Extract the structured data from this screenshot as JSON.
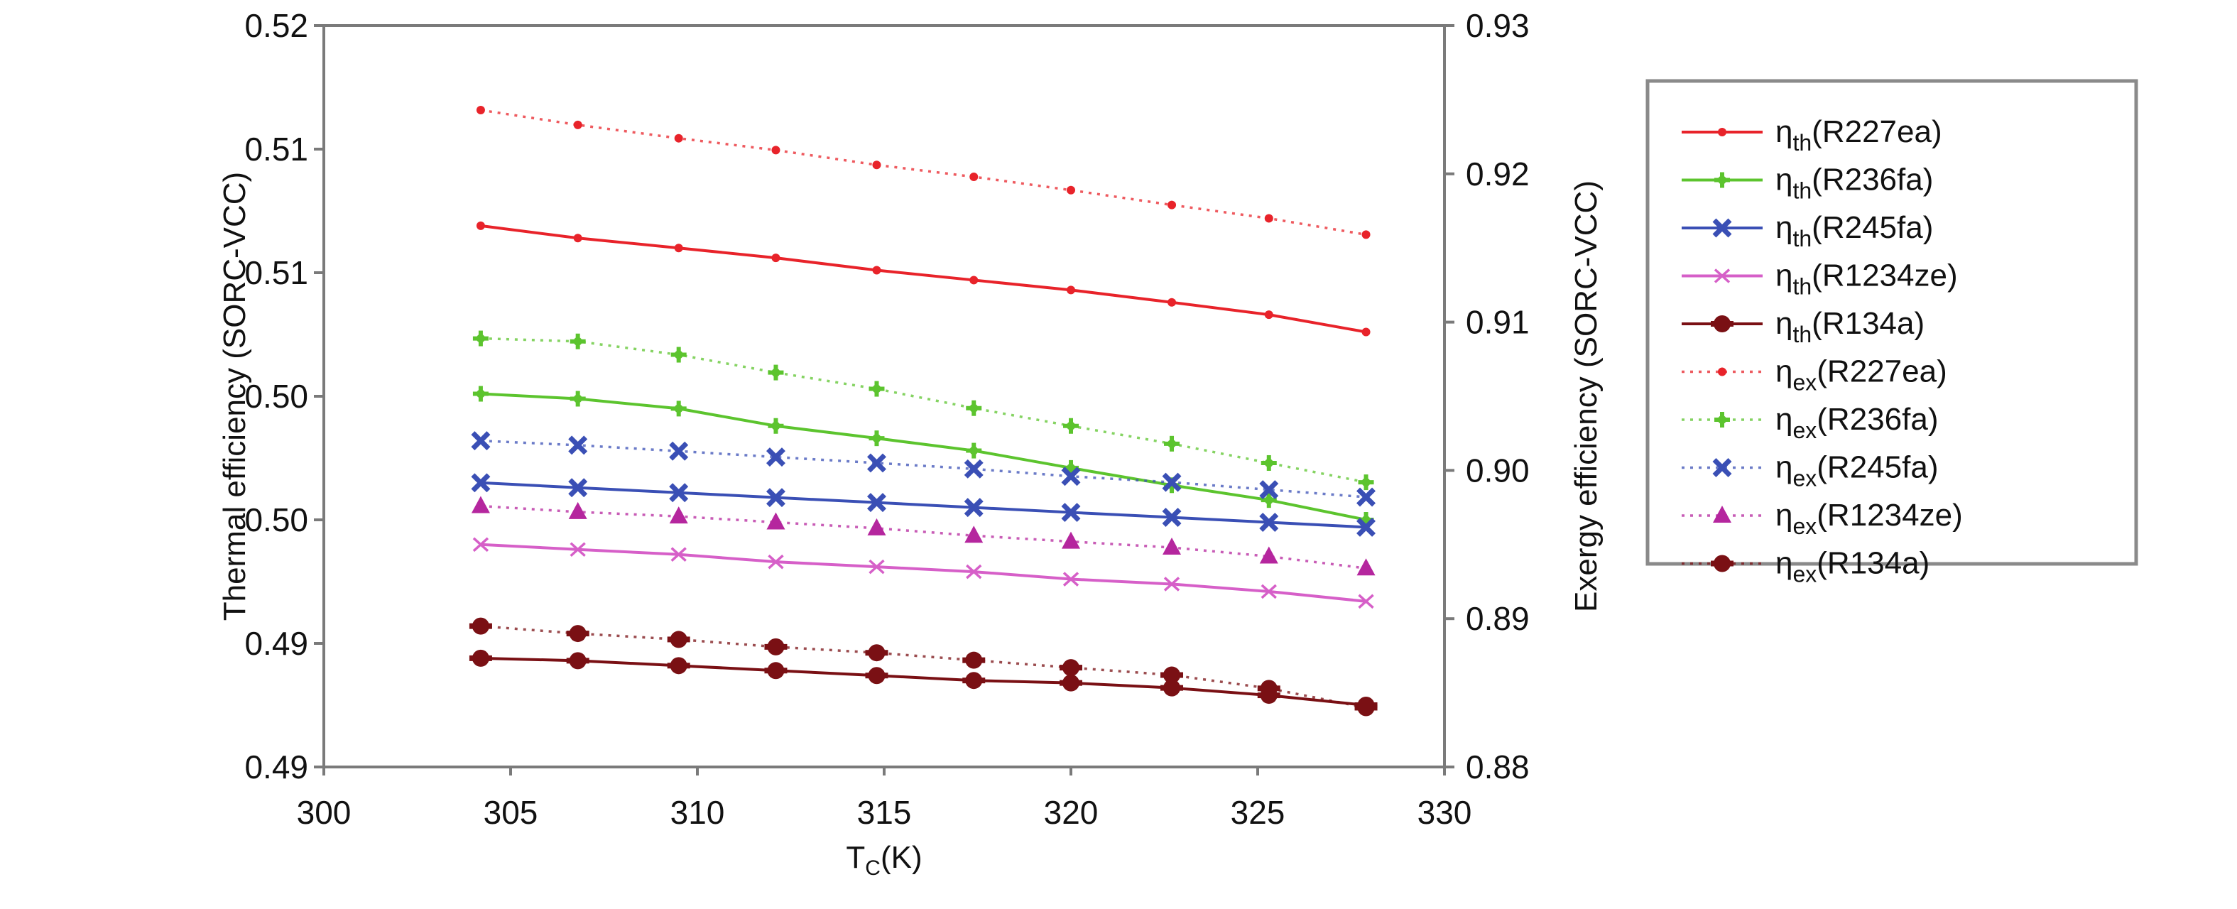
{
  "chart_data": {
    "type": "line",
    "title": "",
    "xlabel": "T",
    "xlabel_sub": "C",
    "xlabel_unit": "(K)",
    "ylabel_left": "Thermal efficiency (SORC-VCC)",
    "ylabel_right": "Exergy efficiency (SORC-VCC)",
    "xlim": [
      300,
      330
    ],
    "ylim_left": [
      0.49,
      0.52
    ],
    "ylim_right": [
      0.88,
      0.93
    ],
    "x_ticks": [
      "300",
      "305",
      "310",
      "315",
      "320",
      "325",
      "330"
    ],
    "y_left_ticks": [
      "0.49",
      "0.49",
      "0.50",
      "0.50",
      "0.51",
      "0.51",
      "0.52"
    ],
    "y_right_ticks": [
      "0.88",
      "0.89",
      "0.90",
      "0.91",
      "0.92",
      "0.93"
    ],
    "grid": false,
    "legend_placement": "right-outside",
    "x": [
      304.2,
      306.8,
      309.5,
      312.1,
      314.8,
      317.4,
      320.0,
      322.7,
      325.3,
      327.9
    ],
    "series": [
      {
        "name": "ηth(R227ea)",
        "symbol": "η",
        "sub": "th",
        "ref": "(R227ea)",
        "axis": "left",
        "style": "solid",
        "marker": "dot",
        "color": "#e8232a",
        "values": [
          0.5119,
          0.5114,
          0.511,
          0.5106,
          0.5101,
          0.5097,
          0.5093,
          0.5088,
          0.5083,
          0.5076
        ]
      },
      {
        "name": "ηth(R236fa)",
        "symbol": "η",
        "sub": "th",
        "ref": "(R236fa)",
        "axis": "left",
        "style": "solid",
        "marker": "plus",
        "color": "#5cc42e",
        "values": [
          0.5051,
          0.5049,
          0.5045,
          0.5038,
          0.5033,
          0.5028,
          0.5021,
          0.5014,
          0.5008,
          0.5
        ]
      },
      {
        "name": "ηth(R245fa)",
        "symbol": "η",
        "sub": "th",
        "ref": "(R245fa)",
        "axis": "left",
        "style": "solid",
        "marker": "x-bold",
        "color": "#3a4fb5",
        "values": [
          0.5015,
          0.5013,
          0.5011,
          0.5009,
          0.5007,
          0.5005,
          0.5003,
          0.5001,
          0.4999,
          0.4997
        ]
      },
      {
        "name": "ηth(R1234ze)",
        "symbol": "η",
        "sub": "th",
        "ref": "(R1234ze)",
        "axis": "left",
        "style": "solid",
        "marker": "x-thin",
        "color": "#d65fc8",
        "values": [
          0.499,
          0.4988,
          0.4986,
          0.4983,
          0.4981,
          0.4979,
          0.4976,
          0.4974,
          0.4971,
          0.4967
        ]
      },
      {
        "name": "ηth(R134a)",
        "symbol": "η",
        "sub": "th",
        "ref": "(R134a)",
        "axis": "left",
        "style": "solid",
        "marker": "big-dot",
        "color": "#7a1014",
        "values": [
          0.4944,
          0.4943,
          0.4941,
          0.4939,
          0.4937,
          0.4935,
          0.4934,
          0.4932,
          0.4929,
          0.4925
        ]
      },
      {
        "name": "ηex(R227ea)",
        "symbol": "η",
        "sub": "ex",
        "ref": "(R227ea)",
        "axis": "right",
        "style": "dotted",
        "marker": "dot",
        "color": "#e8232a",
        "values": [
          0.9243,
          0.9233,
          0.9224,
          0.9216,
          0.9206,
          0.9198,
          0.9189,
          0.9179,
          0.917,
          0.9159
        ]
      },
      {
        "name": "ηex(R236fa)",
        "symbol": "η",
        "sub": "ex",
        "ref": "(R236fa)",
        "axis": "right",
        "style": "dotted",
        "marker": "plus",
        "color": "#5cc42e",
        "values": [
          0.9089,
          0.9087,
          0.9078,
          0.9066,
          0.9055,
          0.9042,
          0.903,
          0.9018,
          0.9005,
          0.8992
        ]
      },
      {
        "name": "ηex(R245fa)",
        "symbol": "η",
        "sub": "ex",
        "ref": "(R245fa)",
        "axis": "right",
        "style": "dotted",
        "marker": "x-bold",
        "color": "#3a4fb5",
        "values": [
          0.902,
          0.9017,
          0.9013,
          0.9009,
          0.9005,
          0.9001,
          0.8996,
          0.8992,
          0.8987,
          0.8982
        ]
      },
      {
        "name": "ηex(R1234ze)",
        "symbol": "η",
        "sub": "ex",
        "ref": "(R1234ze)",
        "axis": "right",
        "style": "dotted",
        "marker": "triangle",
        "color": "#b5269e",
        "values": [
          0.8976,
          0.8972,
          0.8969,
          0.8965,
          0.8961,
          0.8956,
          0.8952,
          0.8948,
          0.8942,
          0.8934
        ]
      },
      {
        "name": "ηex(R134a)",
        "symbol": "η",
        "sub": "ex",
        "ref": "(R134a)",
        "axis": "right",
        "style": "dotted",
        "marker": "big-dot",
        "color": "#7a1014",
        "values": [
          0.8895,
          0.889,
          0.8886,
          0.8881,
          0.8877,
          0.8872,
          0.8867,
          0.8862,
          0.8853,
          0.884
        ]
      }
    ]
  }
}
